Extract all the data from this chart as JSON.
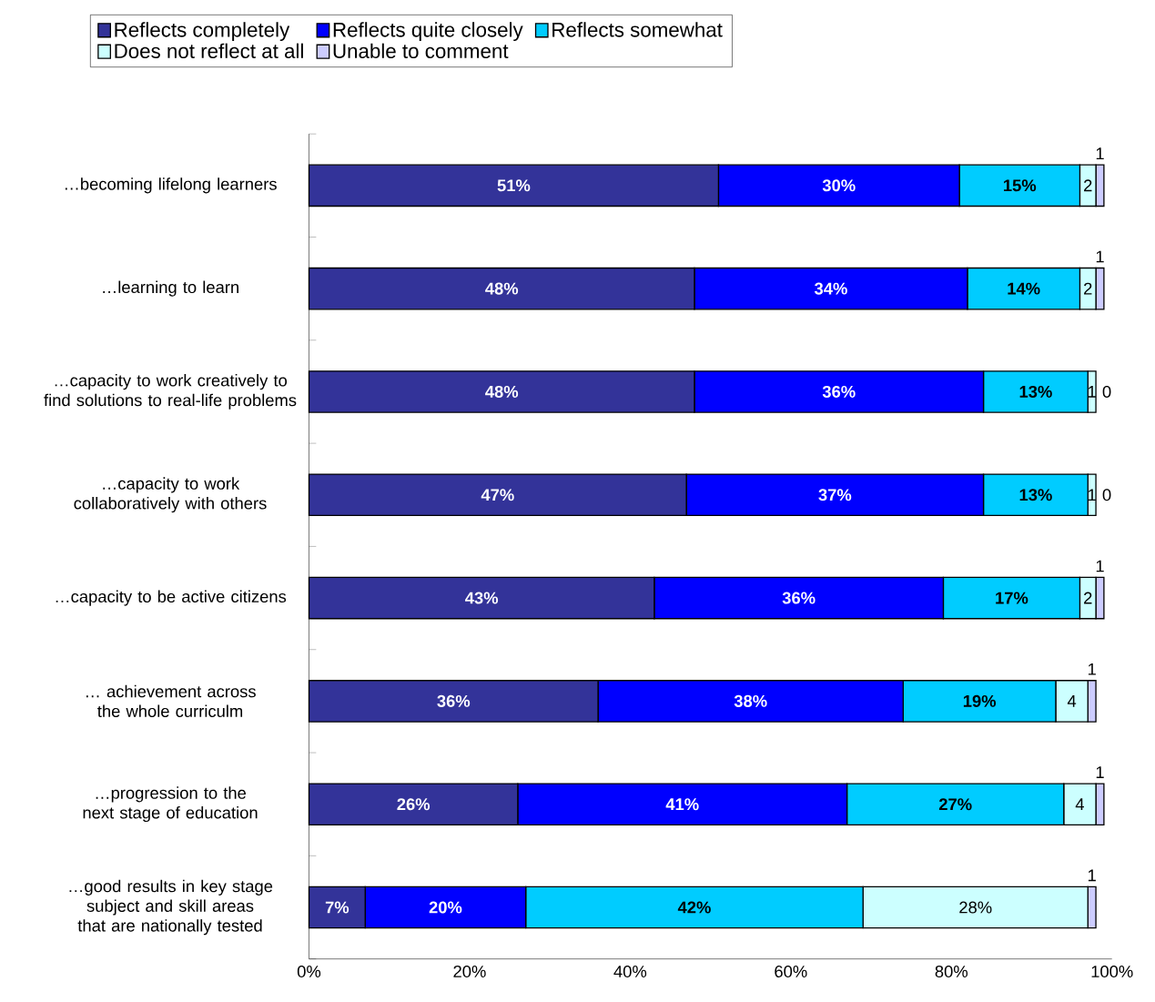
{
  "chart_data": {
    "type": "bar",
    "orientation": "horizontal",
    "stacked": true,
    "categories": [
      "…becoming lifelong learners",
      "…learning to learn",
      "…capacity to work creatively to find solutions to real-life problems",
      "…capacity to work collaboratively with others",
      "…capacity to be active citizens",
      "… achievement across the whole curriculm",
      "…progression to the next stage of education",
      "…good results in key stage subject and skill areas that are nationally tested"
    ],
    "series": [
      {
        "name": "Reflects completely",
        "color": "#333399",
        "values": [
          51,
          48,
          48,
          47,
          43,
          36,
          26,
          7
        ],
        "value_labels": [
          "51%",
          "48%",
          "48%",
          "47%",
          "43%",
          "36%",
          "26%",
          "7%"
        ]
      },
      {
        "name": "Reflects quite closely",
        "color": "#0000ff",
        "values": [
          30,
          34,
          36,
          37,
          36,
          38,
          41,
          20
        ],
        "value_labels": [
          "30%",
          "34%",
          "36%",
          "37%",
          "36%",
          "38%",
          "41%",
          "20%"
        ]
      },
      {
        "name": "Reflects somewhat",
        "color": "#00ccff",
        "values": [
          15,
          14,
          13,
          13,
          17,
          19,
          27,
          42
        ],
        "value_labels": [
          "15%",
          "14%",
          "13%",
          "13%",
          "17%",
          "19%",
          "27%",
          "42%"
        ]
      },
      {
        "name": "Does not reflect at all",
        "color": "#ccffff",
        "values": [
          2,
          2,
          1,
          1,
          2,
          4,
          4,
          28
        ],
        "value_labels": [
          "2",
          "2",
          "1",
          "1",
          "2",
          "4",
          "4",
          "28%"
        ]
      },
      {
        "name": "Unable to comment",
        "color": "#ccccff",
        "values": [
          1,
          1,
          0,
          0,
          1,
          1,
          1,
          1
        ],
        "value_labels": [
          "1",
          "1",
          "0",
          "0",
          "1",
          "1",
          "1",
          "1"
        ]
      }
    ],
    "xlim": [
      0,
      100
    ],
    "xticks": [
      {
        "value": 0,
        "label": "0%"
      },
      {
        "value": 20,
        "label": "20%"
      },
      {
        "value": 40,
        "label": "40%"
      },
      {
        "value": 60,
        "label": "60%"
      },
      {
        "value": 80,
        "label": "80%"
      },
      {
        "value": 100,
        "label": "100%"
      }
    ],
    "legend": "top"
  }
}
